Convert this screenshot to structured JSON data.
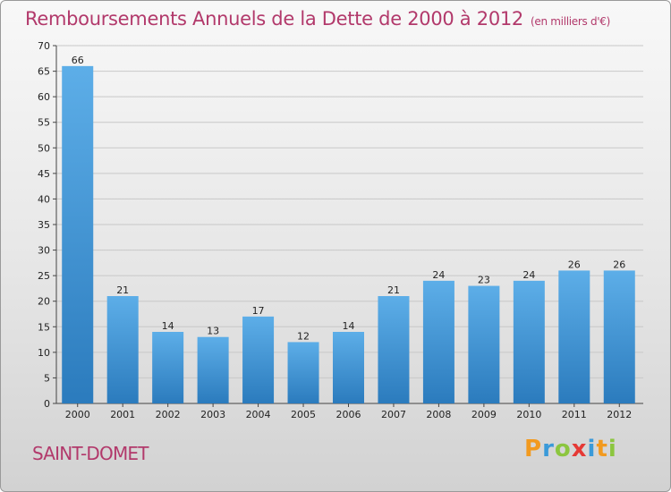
{
  "title": "Remboursements Annuels de la Dette de 2000 à 2012",
  "subtitle": "(en milliers d'€)",
  "commune": "SAINT-DOMET",
  "logo": {
    "text": "Proxiti",
    "letters": [
      {
        "ch": "P",
        "color": "#f29a1f"
      },
      {
        "ch": "r",
        "color": "#3a9ad9"
      },
      {
        "ch": "o",
        "color": "#8cc63f"
      },
      {
        "ch": "x",
        "color": "#e53935"
      },
      {
        "ch": "i",
        "color": "#3a9ad9"
      },
      {
        "ch": "t",
        "color": "#f29a1f"
      },
      {
        "ch": "i",
        "color": "#8cc63f"
      }
    ]
  },
  "colors": {
    "title": "#b2396b",
    "bar_top": "#5daee8",
    "bar_bottom": "#2b7bbd",
    "grid": "#c8c8c8"
  },
  "chart_data": {
    "type": "bar",
    "categories": [
      "2000",
      "2001",
      "2002",
      "2003",
      "2004",
      "2005",
      "2006",
      "2007",
      "2008",
      "2009",
      "2010",
      "2011",
      "2012"
    ],
    "values": [
      66,
      21,
      14,
      13,
      17,
      12,
      14,
      21,
      24,
      23,
      24,
      26,
      26
    ],
    "ylim": [
      0,
      70
    ],
    "yticks": [
      0,
      5,
      10,
      15,
      20,
      25,
      30,
      35,
      40,
      45,
      50,
      55,
      60,
      65,
      70
    ],
    "grid": true,
    "legend": "none"
  }
}
